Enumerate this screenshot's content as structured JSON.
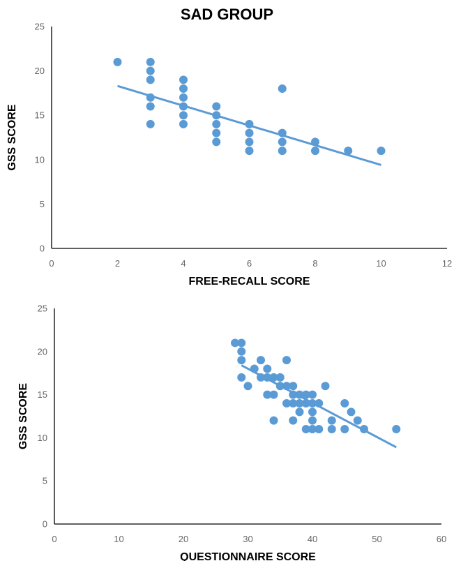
{
  "page_title": "SAD GROUP",
  "chart_data": [
    {
      "type": "scatter",
      "title": "SAD GROUP",
      "xlabel": "FREE-RECALL SCORE",
      "ylabel": "GSS SCORE",
      "xlim": [
        0,
        12
      ],
      "ylim": [
        0,
        25
      ],
      "xticks": [
        "0",
        "2",
        "4",
        "6",
        "8",
        "10",
        "12"
      ],
      "yticks": [
        "0",
        "5",
        "10",
        "15",
        "20",
        "25"
      ],
      "grid": false,
      "trendline": {
        "x": [
          2,
          10
        ],
        "y": [
          18.3,
          9.4
        ]
      },
      "point_color": "#5b9bd5",
      "points": [
        [
          2,
          21
        ],
        [
          3,
          21
        ],
        [
          3,
          20
        ],
        [
          3,
          19
        ],
        [
          3,
          17
        ],
        [
          3,
          16
        ],
        [
          3,
          14
        ],
        [
          4,
          19
        ],
        [
          4,
          18
        ],
        [
          4,
          17
        ],
        [
          4,
          16
        ],
        [
          4,
          15
        ],
        [
          4,
          14
        ],
        [
          5,
          16
        ],
        [
          5,
          15
        ],
        [
          5,
          14
        ],
        [
          5,
          13
        ],
        [
          5,
          12
        ],
        [
          6,
          14
        ],
        [
          6,
          13
        ],
        [
          6,
          12
        ],
        [
          6,
          11
        ],
        [
          7,
          18
        ],
        [
          7,
          13
        ],
        [
          7,
          12
        ],
        [
          7,
          11
        ],
        [
          8,
          12
        ],
        [
          8,
          11
        ],
        [
          9,
          11
        ],
        [
          10,
          11
        ]
      ]
    },
    {
      "type": "scatter",
      "xlabel": "QUESTIONNAIRE SCORE",
      "ylabel": "GSS SCORE",
      "xlim": [
        0,
        60
      ],
      "ylim": [
        0,
        25
      ],
      "xticks": [
        "0",
        "10",
        "20",
        "30",
        "40",
        "50",
        "60"
      ],
      "yticks": [
        "0",
        "5",
        "10",
        "15",
        "20",
        "25"
      ],
      "grid": false,
      "trendline": {
        "x": [
          29,
          53
        ],
        "y": [
          18.4,
          8.9
        ]
      },
      "point_color": "#5b9bd5",
      "points": [
        [
          28,
          21
        ],
        [
          29,
          21
        ],
        [
          29,
          20
        ],
        [
          29,
          19
        ],
        [
          29,
          17
        ],
        [
          30,
          16
        ],
        [
          31,
          18
        ],
        [
          32,
          19
        ],
        [
          32,
          17
        ],
        [
          33,
          18
        ],
        [
          33,
          17
        ],
        [
          33,
          15
        ],
        [
          34,
          17
        ],
        [
          34,
          15
        ],
        [
          34,
          12
        ],
        [
          35,
          17
        ],
        [
          35,
          16
        ],
        [
          36,
          19
        ],
        [
          36,
          16
        ],
        [
          36,
          14
        ],
        [
          37,
          16
        ],
        [
          37,
          15
        ],
        [
          37,
          14
        ],
        [
          37,
          12
        ],
        [
          38,
          15
        ],
        [
          38,
          14
        ],
        [
          38,
          13
        ],
        [
          39,
          15
        ],
        [
          39,
          14
        ],
        [
          39,
          11
        ],
        [
          40,
          15
        ],
        [
          40,
          14
        ],
        [
          40,
          13
        ],
        [
          40,
          12
        ],
        [
          40,
          11
        ],
        [
          41,
          14
        ],
        [
          41,
          11
        ],
        [
          42,
          16
        ],
        [
          43,
          12
        ],
        [
          43,
          11
        ],
        [
          45,
          14
        ],
        [
          45,
          11
        ],
        [
          46,
          13
        ],
        [
          47,
          12
        ],
        [
          48,
          11
        ],
        [
          53,
          11
        ]
      ]
    }
  ]
}
